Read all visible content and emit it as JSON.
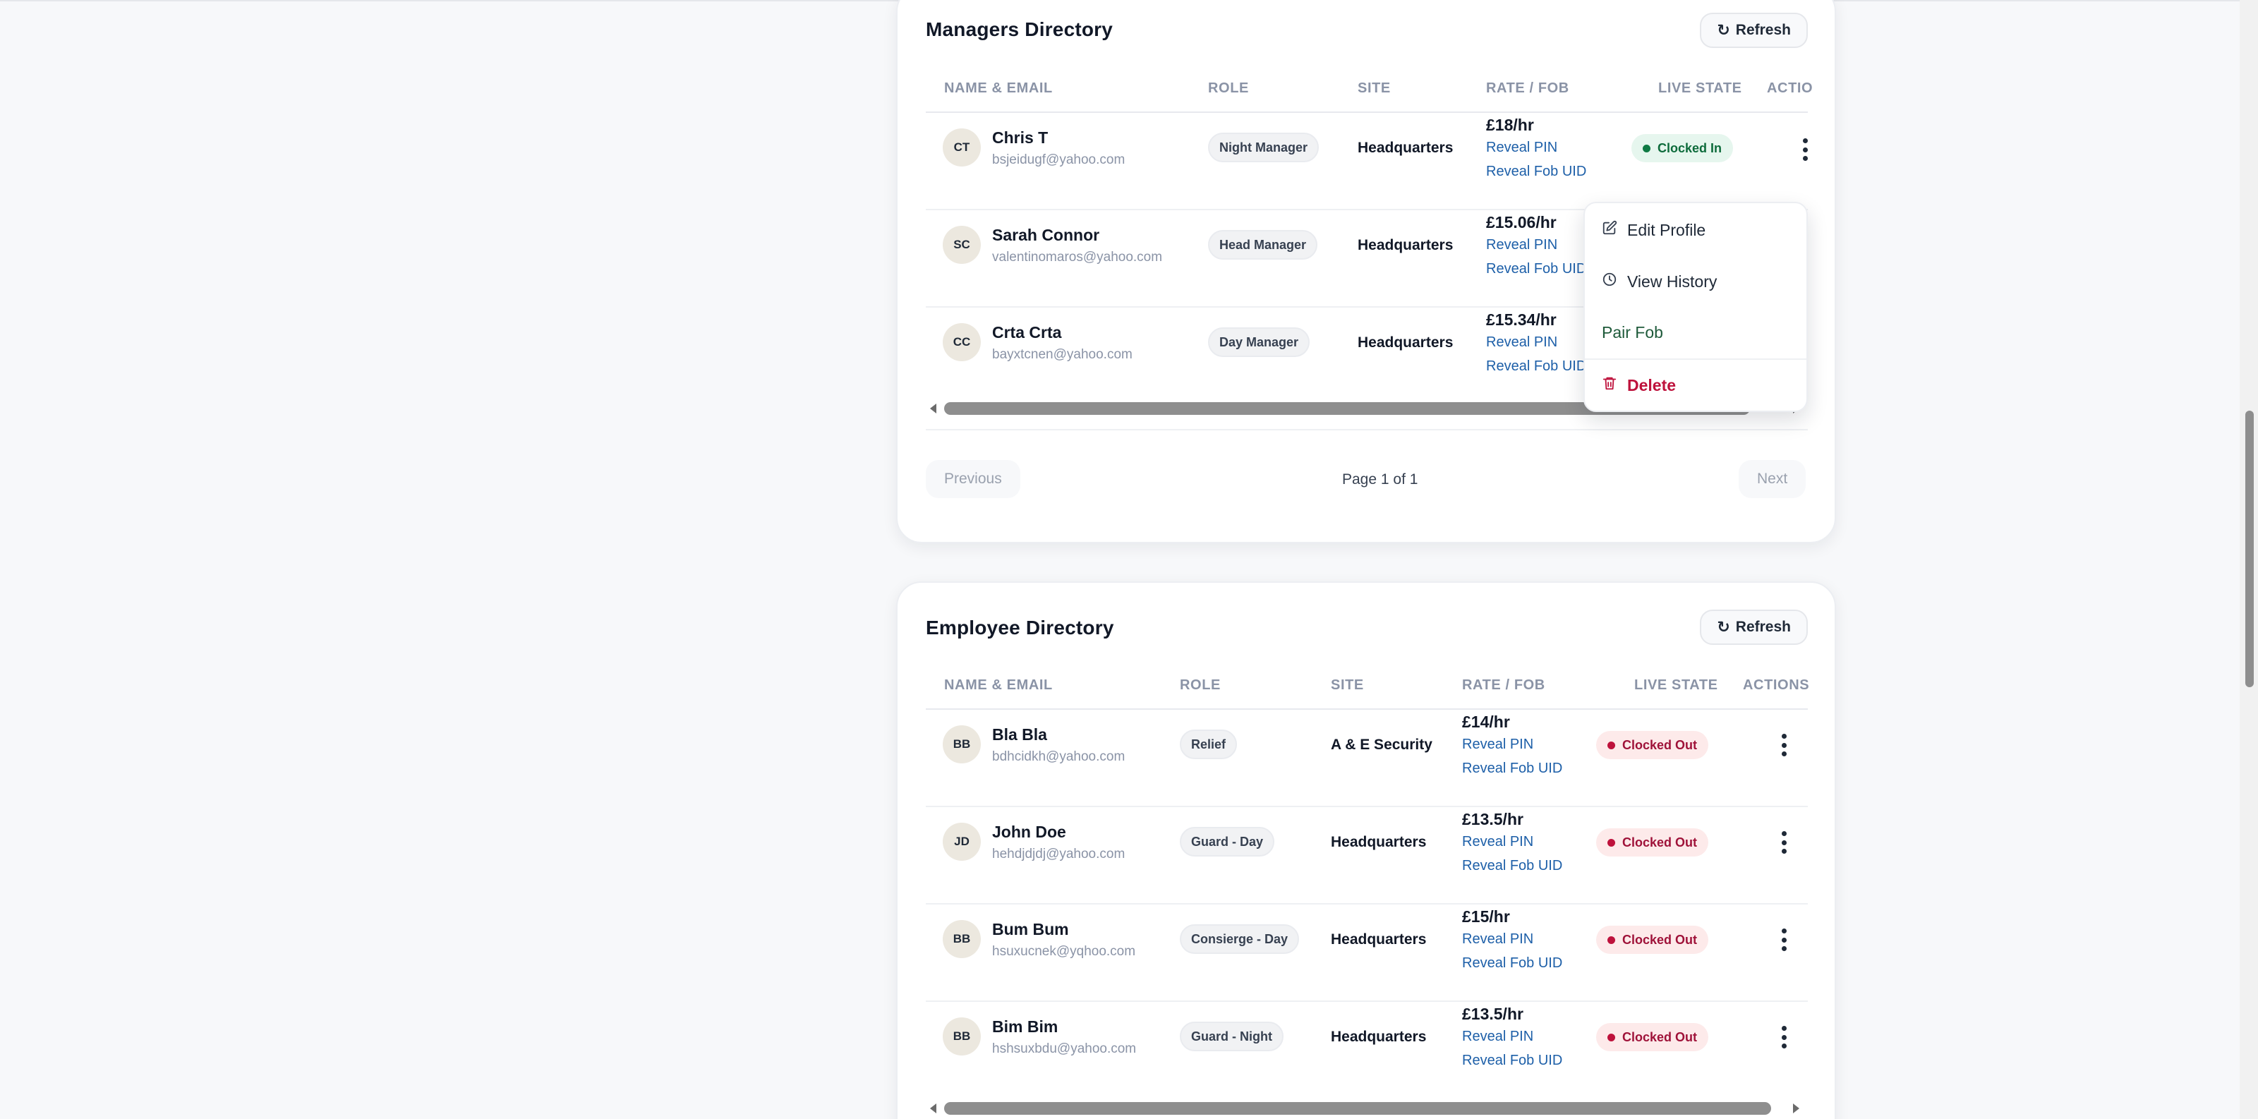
{
  "managers": {
    "title": "Managers Directory",
    "refresh_label": "Refresh",
    "columns": [
      "NAME & EMAIL",
      "ROLE",
      "SITE",
      "RATE / FOB",
      "LIVE STATE",
      "ACTIO"
    ],
    "rows": [
      {
        "initials": "CT",
        "name": "Chris T",
        "email": "bsjeidugf@yahoo.com",
        "role": "Night Manager",
        "site": "Headquarters",
        "rate": "£18/hr",
        "pin_link": "Reveal PIN",
        "fob_link": "Reveal Fob UID",
        "state": "Clocked In"
      },
      {
        "initials": "SC",
        "name": "Sarah Connor",
        "email": "valentinomaros@yahoo.com",
        "role": "Head Manager",
        "site": "Headquarters",
        "rate": "£15.06/hr",
        "pin_link": "Reveal PIN",
        "fob_link": "Reveal Fob UID",
        "state": ""
      },
      {
        "initials": "CC",
        "name": "Crta Crta",
        "email": "bayxtcnen@yahoo.com",
        "role": "Day Manager",
        "site": "Headquarters",
        "rate": "£15.34/hr",
        "pin_link": "Reveal PIN",
        "fob_link": "Reveal Fob UID",
        "state": ""
      }
    ],
    "pagination": {
      "previous": "Previous",
      "page_info": "Page 1 of 1",
      "next": "Next"
    }
  },
  "action_menu": {
    "items": [
      {
        "label": "Edit Profile",
        "icon": "edit-icon"
      },
      {
        "label": "View History",
        "icon": "clock-icon"
      },
      {
        "label": "Pair Fob",
        "icon": ""
      },
      {
        "label": "Delete",
        "icon": "trash-icon"
      }
    ]
  },
  "employees": {
    "title": "Employee Directory",
    "refresh_label": "Refresh",
    "columns": [
      "NAME & EMAIL",
      "ROLE",
      "SITE",
      "RATE / FOB",
      "LIVE STATE",
      "ACTIONS"
    ],
    "rows": [
      {
        "initials": "BB",
        "name": "Bla Bla",
        "email": "bdhcidkh@yahoo.com",
        "role": "Relief",
        "site": "A & E Security",
        "rate": "£14/hr",
        "pin_link": "Reveal PIN",
        "fob_link": "Reveal Fob UID",
        "state": "Clocked Out"
      },
      {
        "initials": "JD",
        "name": "John Doe",
        "email": "hehdjdjdj@yahoo.com",
        "role": "Guard - Day",
        "site": "Headquarters",
        "rate": "£13.5/hr",
        "pin_link": "Reveal PIN",
        "fob_link": "Reveal Fob UID",
        "state": "Clocked Out"
      },
      {
        "initials": "BB",
        "name": "Bum Bum",
        "email": "hsuxucnek@yqhoo.com",
        "role": "Consierge - Day",
        "site": "Headquarters",
        "rate": "£15/hr",
        "pin_link": "Reveal PIN",
        "fob_link": "Reveal Fob UID",
        "state": "Clocked Out"
      },
      {
        "initials": "BB",
        "name": "Bim Bim",
        "email": "hshsuxbdu@yahoo.com",
        "role": "Guard - Night",
        "site": "Headquarters",
        "rate": "£13.5/hr",
        "pin_link": "Reveal PIN",
        "fob_link": "Reveal Fob UID",
        "state": "Clocked Out"
      }
    ]
  },
  "colors": {
    "accent_link": "#1d5fa8",
    "clocked_in": "#0d6b3b",
    "clocked_out": "#be123c"
  }
}
